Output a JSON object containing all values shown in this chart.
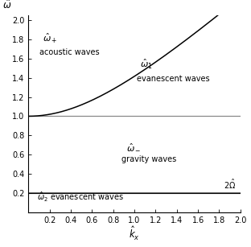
{
  "title": "",
  "xlabel": "$\\hat{k}_x$",
  "ylabel": "$\\hat{\\omega}$",
  "xlim": [
    0,
    2.0
  ],
  "ylim": [
    0,
    2.05
  ],
  "xticks": [
    0,
    0.2,
    0.4,
    0.6,
    0.8,
    1.0,
    1.2,
    1.4,
    1.6,
    1.8,
    2.0
  ],
  "yticks": [
    0,
    0.2,
    0.4,
    0.6,
    0.8,
    1.0,
    1.2,
    1.4,
    1.6,
    1.8,
    2.0
  ],
  "omega_b": 1.0,
  "two_omega": 0.2,
  "line_color": "#888888",
  "background_color": "#ffffff",
  "ann_omega_plus_x": 0.13,
  "ann_omega_plus_y": 1.74,
  "ann_acoustic_x": 0.1,
  "ann_acoustic_y": 1.62,
  "ann_omega1_x": 1.05,
  "ann_omega1_y": 1.47,
  "ann_evan1_x": 1.02,
  "ann_evan1_y": 1.35,
  "ann_omega_minus_x": 0.92,
  "ann_omega_minus_y": 0.63,
  "ann_gravity_x": 0.88,
  "ann_gravity_y": 0.51,
  "ann_omega2_x": 0.08,
  "ann_omega2_y": 0.095,
  "ann_2omega_x": 1.9,
  "ann_2omega_y": 0.225
}
